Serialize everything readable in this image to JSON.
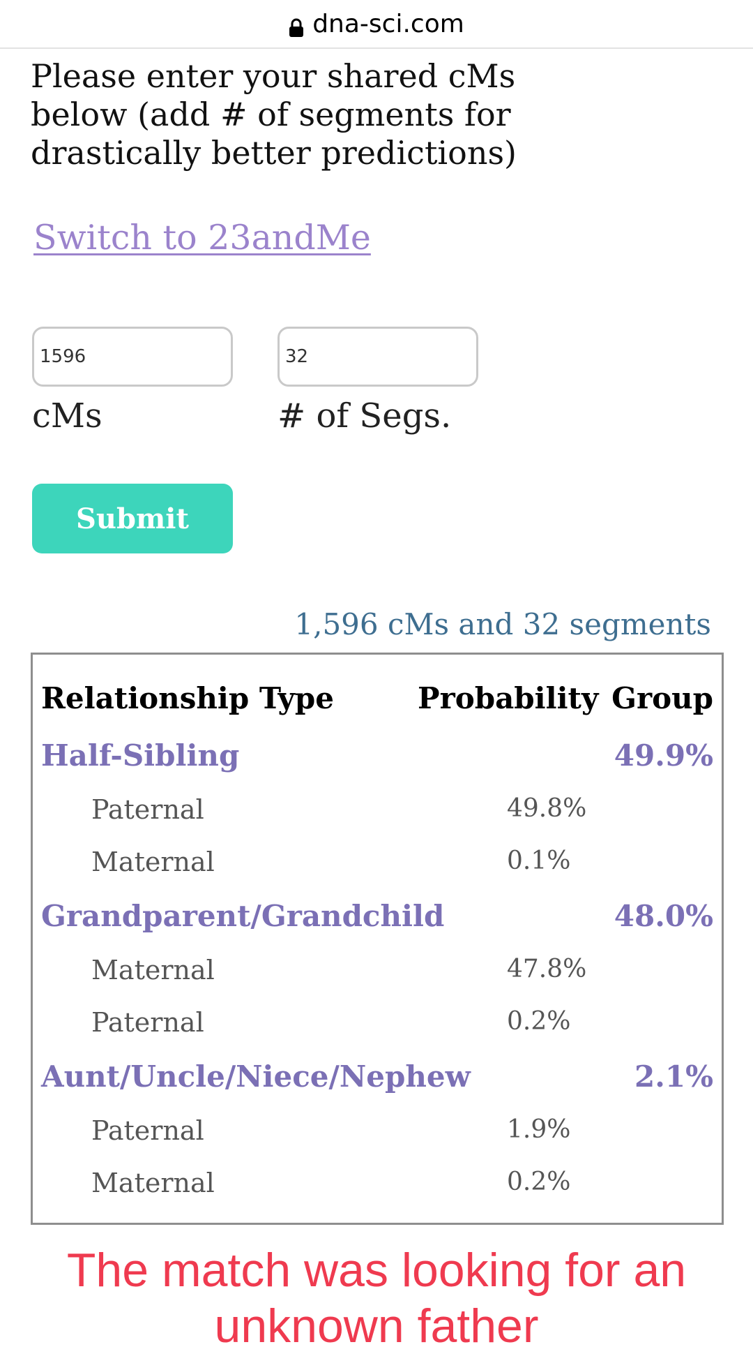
{
  "browser": {
    "url": "dna-sci.com",
    "lock_icon": "lock-icon"
  },
  "intro": {
    "line1": "Please enter your shared cMs",
    "line2": "below (add # of segments for",
    "line3": "drastically better predictions)"
  },
  "switch_link": "Switch to 23andMe",
  "form": {
    "cms_value": "1596",
    "segs_value": "32",
    "cms_label": "cMs",
    "segs_label": "# of Segs.",
    "submit_label": "Submit"
  },
  "summary": "1,596 cMs and 32 segments",
  "table": {
    "headers": {
      "relationship": "Relationship Type",
      "probability": "Probability",
      "group": "Group"
    },
    "groups": [
      {
        "name": "Half-Sibling",
        "group_pct": "49.9%",
        "rows": [
          {
            "name": "Paternal",
            "pct": "49.8%"
          },
          {
            "name": "Maternal",
            "pct": "0.1%"
          }
        ]
      },
      {
        "name": "Grandparent/Grandchild",
        "group_pct": "48.0%",
        "rows": [
          {
            "name": "Maternal",
            "pct": "47.8%"
          },
          {
            "name": "Paternal",
            "pct": "0.2%"
          }
        ]
      },
      {
        "name": "Aunt/Uncle/Niece/Nephew",
        "group_pct": "2.1%",
        "rows": [
          {
            "name": "Paternal",
            "pct": "1.9%"
          },
          {
            "name": "Maternal",
            "pct": "0.2%"
          }
        ]
      }
    ]
  },
  "annotation": {
    "line1": "The match was looking for an",
    "line2": "unknown father",
    "color": "#ef3a4f"
  },
  "colors": {
    "link": "#9b83cc",
    "submit_bg": "#3dd5bb",
    "group_text": "#7b70b5",
    "summary_text": "#3e6e90"
  }
}
